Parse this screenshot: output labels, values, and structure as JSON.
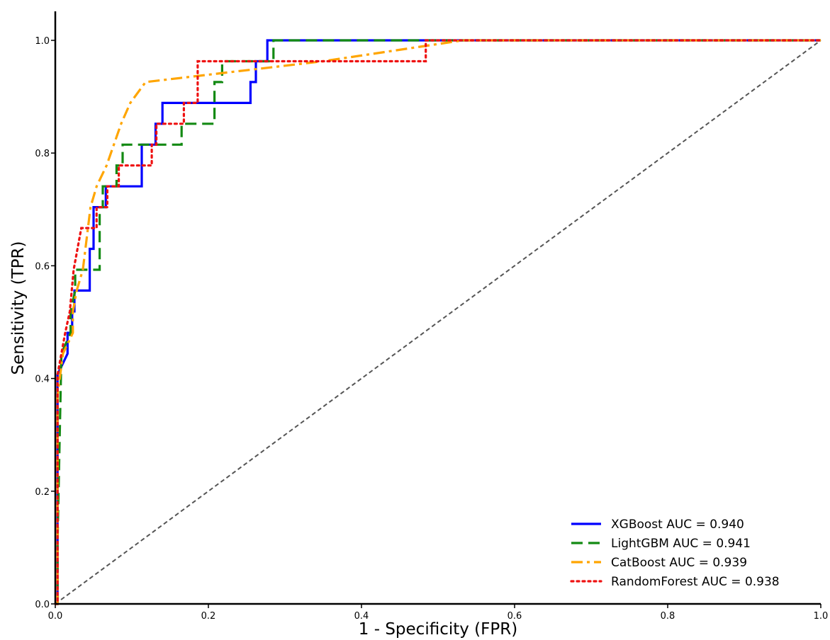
{
  "chart_data": {
    "type": "line",
    "title": "",
    "xlabel": "1 - Specificity (FPR)",
    "ylabel": "Sensitivity (TPR)",
    "xlim": [
      0,
      1
    ],
    "ylim": [
      0,
      1.05
    ],
    "xticks": [
      "0.0",
      "0.2",
      "0.4",
      "0.6",
      "0.8",
      "1.0"
    ],
    "yticks": [
      "0.0",
      "0.2",
      "0.4",
      "0.6",
      "0.8",
      "1.0"
    ],
    "grid": false,
    "legend_position": "bottom-right",
    "reference_line": {
      "x": [
        0,
        1
      ],
      "y": [
        0,
        1
      ],
      "color": "#555555",
      "style": "dashed"
    },
    "series": [
      {
        "name": "XGBoost AUC = 0.940",
        "color": "#0000ff",
        "style": "solid",
        "x": [
          0,
          0.003,
          0.003,
          0.016,
          0.016,
          0.022,
          0.022,
          0.025,
          0.025,
          0.045,
          0.045,
          0.05,
          0.05,
          0.066,
          0.066,
          0.113,
          0.113,
          0.131,
          0.131,
          0.14,
          0.14,
          0.255,
          0.255,
          0.262,
          0.262,
          0.277,
          0.277,
          1.0
        ],
        "y": [
          0,
          0,
          0.407,
          0.444,
          0.481,
          0.481,
          0.519,
          0.519,
          0.556,
          0.556,
          0.63,
          0.63,
          0.704,
          0.704,
          0.741,
          0.741,
          0.815,
          0.815,
          0.852,
          0.852,
          0.889,
          0.889,
          0.926,
          0.926,
          0.963,
          0.963,
          1.0,
          1.0
        ]
      },
      {
        "name": "LightGBM AUC = 0.941",
        "color": "#138a13",
        "style": "dashed",
        "x": [
          0,
          0.003,
          0.003,
          0.008,
          0.008,
          0.02,
          0.02,
          0.026,
          0.026,
          0.058,
          0.058,
          0.062,
          0.062,
          0.08,
          0.08,
          0.088,
          0.088,
          0.165,
          0.165,
          0.208,
          0.208,
          0.218,
          0.218,
          0.285,
          0.285,
          1.0
        ],
        "y": [
          0,
          0,
          0.111,
          0.444,
          0.444,
          0.481,
          0.519,
          0.556,
          0.593,
          0.593,
          0.704,
          0.704,
          0.741,
          0.741,
          0.778,
          0.778,
          0.815,
          0.815,
          0.852,
          0.852,
          0.926,
          0.926,
          0.963,
          0.963,
          1.0,
          1.0
        ]
      },
      {
        "name": "CatBoost AUC = 0.939",
        "color": "#ffa500",
        "style": "dashdot",
        "x": [
          0,
          0.003,
          0.003,
          0.01,
          0.01,
          0.023,
          0.023,
          0.028,
          0.028,
          0.036,
          0.036,
          0.046,
          0.046,
          0.054,
          0.054,
          0.067,
          0.067,
          0.086,
          0.086,
          0.098,
          0.098,
          0.118,
          0.118,
          0.35,
          0.35,
          0.532,
          0.532,
          1.0
        ],
        "y": [
          0,
          0,
          0.37,
          0.444,
          0.444,
          0.481,
          0.519,
          0.556,
          0.556,
          0.593,
          0.593,
          0.704,
          0.704,
          0.741,
          0.741,
          0.778,
          0.778,
          0.852,
          0.852,
          0.889,
          0.889,
          0.926,
          0.926,
          0.963,
          0.963,
          1.0,
          1.0,
          1.0
        ]
      },
      {
        "name": "RandomForest AUC = 0.938",
        "color": "#ee1111",
        "style": "dotted",
        "x": [
          0,
          0.003,
          0.003,
          0.013,
          0.013,
          0.019,
          0.019,
          0.024,
          0.024,
          0.034,
          0.034,
          0.054,
          0.054,
          0.068,
          0.068,
          0.083,
          0.083,
          0.126,
          0.126,
          0.132,
          0.132,
          0.168,
          0.168,
          0.186,
          0.186,
          0.484,
          0.484,
          1.0
        ],
        "y": [
          0,
          0,
          0.407,
          0.481,
          0.481,
          0.519,
          0.519,
          0.593,
          0.593,
          0.667,
          0.667,
          0.667,
          0.704,
          0.704,
          0.741,
          0.741,
          0.778,
          0.778,
          0.815,
          0.815,
          0.852,
          0.852,
          0.889,
          0.889,
          0.963,
          0.963,
          1.0,
          1.0
        ]
      }
    ]
  }
}
